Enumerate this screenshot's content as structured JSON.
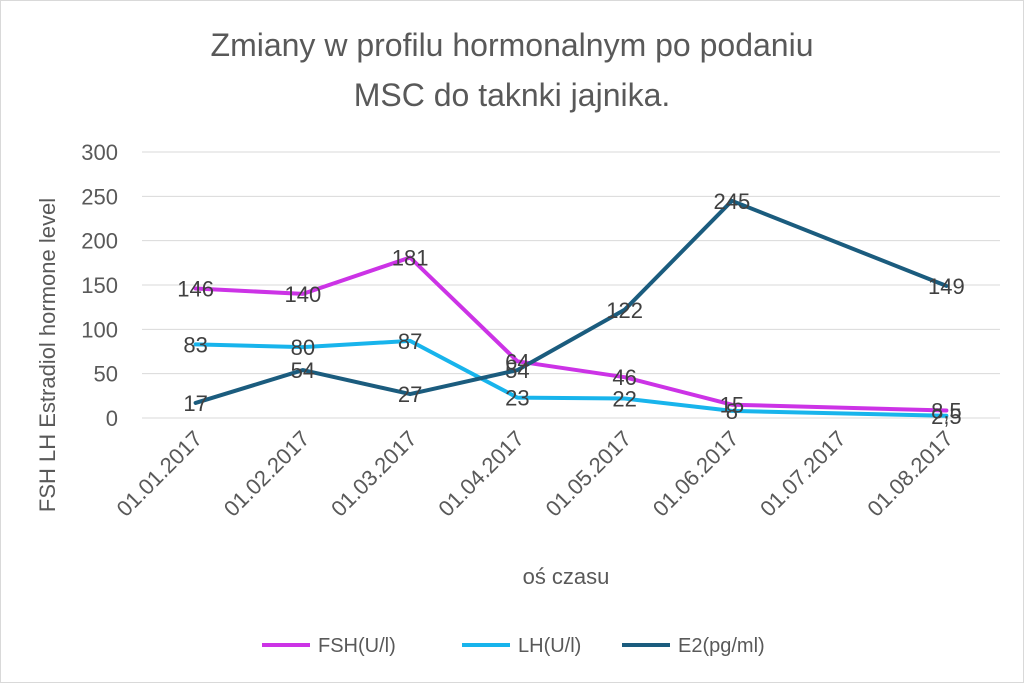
{
  "chart_data": {
    "type": "line",
    "title_line1": "Zmiany w profilu hormonalnym po podaniu",
    "title_line2": "MSC do taknki jajnika.",
    "xlabel": "oś czasu",
    "ylabel": "FSH LH Estradiol hormone level",
    "categories": [
      "01.01.2017",
      "01.02.2017",
      "01.03.2017",
      "01.04.2017",
      "01.05.2017",
      "01.06.2017",
      "01.07.2017",
      "01.08.2017"
    ],
    "ylim": [
      0,
      300
    ],
    "yticks": [
      0,
      50,
      100,
      150,
      200,
      250,
      300
    ],
    "grid": true,
    "legend_position": "bottom",
    "series": [
      {
        "name": "FSH(U/l)",
        "color": "#CC33E6",
        "values": [
          146,
          140,
          181,
          64,
          46,
          15,
          null,
          8.5
        ],
        "labels": [
          "146",
          "140",
          "181",
          "64",
          "46",
          "15",
          null,
          "8,5"
        ]
      },
      {
        "name": "LH(U/l)",
        "color": "#18B4EC",
        "values": [
          83,
          80,
          87,
          23,
          22,
          8,
          null,
          2.5
        ],
        "labels": [
          "83",
          "80",
          "87",
          "23",
          "22",
          "8",
          null,
          "2,5"
        ]
      },
      {
        "name": "E2(pg/ml)",
        "color": "#1B5C7E",
        "values": [
          17,
          54,
          27,
          54,
          122,
          245,
          null,
          149
        ],
        "labels": [
          "17",
          "54",
          "27",
          "54",
          "122",
          "245",
          null,
          "149"
        ]
      }
    ]
  }
}
